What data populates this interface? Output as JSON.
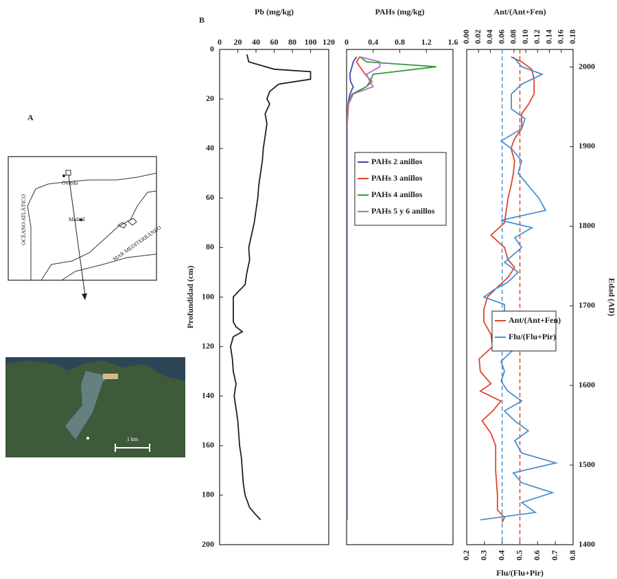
{
  "labels": {
    "a": "A",
    "b": "B"
  },
  "map": {
    "ocean": "OCÉANO ATLÁTICO",
    "city1": "Oviedo",
    "city2": "Madrid",
    "sea": "MAR MEDITERRÁNEO"
  },
  "photo": {
    "scale": "1 km"
  },
  "chart_data": [
    {
      "type": "line",
      "title": "Pb (mg/kg)",
      "ylabel": "Profundidad (cm)",
      "xlim": [
        0,
        120
      ],
      "xticks": [
        0,
        20,
        40,
        60,
        80,
        100,
        120
      ],
      "ylim": [
        0,
        200
      ],
      "yticks": [
        0,
        20,
        40,
        60,
        80,
        100,
        120,
        140,
        160,
        180,
        200
      ],
      "depth": [
        2,
        5,
        8,
        9,
        12,
        14,
        17,
        20,
        22,
        26,
        30,
        35,
        40,
        45,
        50,
        55,
        60,
        65,
        70,
        75,
        80,
        85,
        90,
        95,
        98,
        100,
        105,
        110,
        112,
        114,
        116,
        120,
        125,
        130,
        135,
        140,
        145,
        150,
        155,
        160,
        165,
        170,
        175,
        180,
        185,
        188,
        190
      ],
      "series": [
        {
          "color": "#2a1a1a",
          "values": [
            30,
            32,
            60,
            100,
            100,
            65,
            55,
            52,
            55,
            50,
            52,
            50,
            48,
            47,
            45,
            43,
            42,
            40,
            38,
            35,
            32,
            33,
            30,
            28,
            20,
            15,
            15,
            15,
            18,
            25,
            15,
            12,
            14,
            15,
            18,
            16,
            18,
            20,
            21,
            22,
            24,
            25,
            26,
            28,
            33,
            40,
            45
          ]
        }
      ]
    },
    {
      "type": "line",
      "title": "PAHs (mg/kg)",
      "xlim": [
        0,
        1.6
      ],
      "xticks": [
        0,
        0.4,
        0.8,
        1.2,
        1.6
      ],
      "ylim": [
        0,
        200
      ],
      "legend": "upper-center",
      "depth": [
        3,
        5,
        7,
        10,
        13,
        15,
        18,
        22,
        30,
        60,
        100,
        150,
        190
      ],
      "series": [
        {
          "name": "PAHs 2 anillos",
          "color": "#3a4aa8",
          "values": [
            0.15,
            0.1,
            0.08,
            0.05,
            0.06,
            0.1,
            0.05,
            0.02,
            0.01,
            0.01,
            0.01,
            0.01,
            0.01
          ]
        },
        {
          "name": "PAHs 3 anillos",
          "color": "#e0452a",
          "values": [
            0.2,
            0.15,
            0.2,
            0.28,
            0.38,
            0.3,
            0.1,
            0.03,
            0.01,
            0.01,
            0.01,
            0.01,
            0.01
          ]
        },
        {
          "name": "PAHs 4 anillos",
          "color": "#3a9a3a",
          "values": [
            0.2,
            0.3,
            1.35,
            0.4,
            0.35,
            0.3,
            0.08,
            0.02,
            0.01,
            0.01,
            0.01,
            0.01,
            0.01
          ]
        },
        {
          "name": "PAHs 5 y 6 anillos",
          "color": "#b070d0",
          "values": [
            0.2,
            0.5,
            0.5,
            0.3,
            0.35,
            0.4,
            0.1,
            0.02,
            0.01,
            0.01,
            0.01,
            0.01,
            0.01
          ]
        }
      ]
    },
    {
      "type": "line",
      "title": "Ant/(Ant+Fen)",
      "x2label": "Flu/(Flu+Pir)",
      "y2label": "Edad (AD)",
      "xlim": [
        0,
        0.18
      ],
      "xtick_rotation": -90,
      "xticks": [
        {
          "value": 0,
          "label": "0.00"
        },
        {
          "value": 0.02,
          "label": "0.02"
        },
        {
          "value": 0.04,
          "label": "0.04"
        },
        {
          "value": 0.06,
          "label": "0.06"
        },
        {
          "value": 0.08,
          "label": "0.08"
        },
        {
          "value": 0.1,
          "label": "0.10"
        },
        {
          "value": 0.12,
          "label": "0.12"
        },
        {
          "value": 0.14,
          "label": "0.14"
        },
        {
          "value": 0.16,
          "label": "0.16"
        },
        {
          "value": 0.18,
          "label": "0.18"
        }
      ],
      "x2lim": [
        0.2,
        0.8
      ],
      "x2ticks": [
        0.2,
        0.3,
        0.4,
        0.5,
        0.6,
        0.7,
        0.8
      ],
      "ylim": [
        0,
        200
      ],
      "y2lim": [
        1400,
        2022
      ],
      "y2ticks": [
        1400,
        1500,
        1600,
        1700,
        1800,
        1900,
        2000
      ],
      "legend": "middle-right",
      "reference_lines": [
        {
          "axis": "x",
          "value": 0.09,
          "color": "#e0452a"
        },
        {
          "axis": "x2",
          "value": 0.4,
          "color": "#4a90d0"
        }
      ],
      "series": [
        {
          "name": "Ant/(Ant+Fen)",
          "color": "#e0452a",
          "axis": "x",
          "depth": [
            3,
            5,
            8,
            12,
            18,
            22,
            26,
            32,
            36,
            40,
            45,
            50,
            55,
            60,
            65,
            70,
            75,
            80,
            85,
            88,
            92,
            96,
            100,
            105,
            110,
            115,
            120,
            125,
            130,
            135,
            138,
            142,
            146,
            150,
            155,
            160,
            170,
            180,
            186,
            189,
            191
          ],
          "values": [
            0.075,
            0.093,
            0.11,
            0.114,
            0.114,
            0.105,
            0.093,
            0.093,
            0.081,
            0.075,
            0.081,
            0.079,
            0.075,
            0.07,
            0.067,
            0.064,
            0.041,
            0.064,
            0.07,
            0.081,
            0.07,
            0.052,
            0.035,
            0.029,
            0.029,
            0.041,
            0.044,
            0.021,
            0.023,
            0.041,
            0.023,
            0.058,
            0.044,
            0.026,
            0.041,
            0.049,
            0.049,
            0.052,
            0.052,
            0.064,
            0.06
          ]
        },
        {
          "name": "Flu/(Flu+Pir)",
          "color": "#4a90d0",
          "axis": "x2",
          "depth": [
            3,
            7,
            10,
            14,
            18,
            24,
            28,
            32,
            37,
            40,
            45,
            50,
            55,
            60,
            65,
            69,
            72,
            76,
            80,
            86,
            90,
            94,
            97,
            100,
            103,
            106,
            110,
            114,
            118,
            122,
            126,
            130,
            134,
            138,
            142,
            146,
            150,
            154,
            158,
            163,
            167,
            171,
            175,
            179,
            183,
            187,
            190
          ],
          "values": [
            0.463,
            0.51,
            0.626,
            0.51,
            0.452,
            0.452,
            0.529,
            0.51,
            0.394,
            0.452,
            0.51,
            0.49,
            0.548,
            0.606,
            0.645,
            0.394,
            0.568,
            0.471,
            0.51,
            0.413,
            0.49,
            0.432,
            0.355,
            0.297,
            0.413,
            0.413,
            0.432,
            0.452,
            0.51,
            0.452,
            0.394,
            0.413,
            0.394,
            0.432,
            0.51,
            0.413,
            0.471,
            0.548,
            0.471,
            0.51,
            0.703,
            0.463,
            0.51,
            0.684,
            0.51,
            0.587,
            0.277
          ]
        }
      ]
    }
  ]
}
